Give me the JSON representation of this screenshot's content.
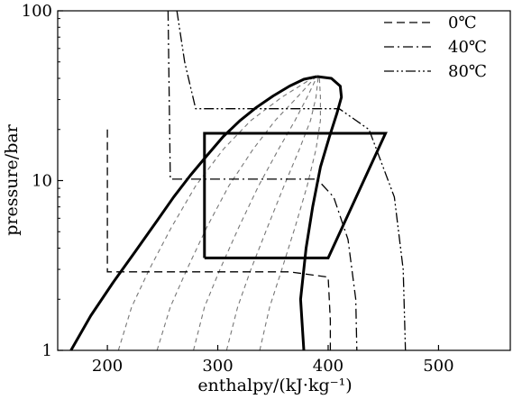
{
  "chart_data": {
    "type": "line",
    "title": "",
    "xlabel": "enthalpy/(kJ·kg⁻¹)",
    "ylabel": "pressure/bar",
    "xlim": [
      155,
      565
    ],
    "ylim": [
      1,
      100
    ],
    "yscale": "log",
    "grid": false,
    "legend_position": "top-right",
    "x_ticks": [
      {
        "value": 200,
        "label": "200"
      },
      {
        "value": 300,
        "label": "300"
      },
      {
        "value": 400,
        "label": "400"
      },
      {
        "value": 500,
        "label": "500"
      }
    ],
    "y_ticks": [
      {
        "value": 1,
        "label": "1"
      },
      {
        "value": 10,
        "label": "10"
      },
      {
        "value": 100,
        "label": "100"
      }
    ],
    "saturation_dome": {
      "liquid": [
        [
          167,
          1
        ],
        [
          185,
          1.6
        ],
        [
          205,
          2.5
        ],
        [
          225,
          3.8
        ],
        [
          245,
          5.8
        ],
        [
          260,
          8
        ],
        [
          275,
          10.7
        ],
        [
          290,
          14
        ],
        [
          305,
          18.2
        ],
        [
          320,
          22.5
        ],
        [
          335,
          27
        ],
        [
          350,
          31.5
        ],
        [
          365,
          36
        ],
        [
          378,
          39.5
        ],
        [
          390,
          41
        ]
      ],
      "vapor": [
        [
          390,
          41
        ],
        [
          403,
          40
        ],
        [
          411,
          36
        ],
        [
          412,
          31
        ],
        [
          408,
          25
        ],
        [
          401,
          18
        ],
        [
          393,
          12
        ],
        [
          386,
          7
        ],
        [
          380,
          4
        ],
        [
          375,
          2
        ],
        [
          378,
          1
        ]
      ]
    },
    "cycle": [
      [
        288,
        3.5
      ],
      [
        288,
        19
      ],
      [
        452,
        19
      ],
      [
        400,
        3.5
      ],
      [
        288,
        3.5
      ]
    ],
    "quality_lines": [
      [
        [
          210,
          1
        ],
        [
          222,
          1.8
        ],
        [
          238,
          3
        ],
        [
          258,
          5.3
        ],
        [
          280,
          9.3
        ],
        [
          305,
          15.3
        ],
        [
          330,
          22.6
        ],
        [
          358,
          31
        ],
        [
          388,
          41
        ]
      ],
      [
        [
          245,
          1
        ],
        [
          257,
          1.8
        ],
        [
          272,
          3
        ],
        [
          290,
          5.3
        ],
        [
          310,
          9.3
        ],
        [
          332,
          15.3
        ],
        [
          352,
          22.6
        ],
        [
          372,
          31
        ],
        [
          389,
          41
        ]
      ],
      [
        [
          278,
          1
        ],
        [
          288,
          1.8
        ],
        [
          302,
          3
        ],
        [
          319,
          5.3
        ],
        [
          337,
          9.3
        ],
        [
          355,
          15.3
        ],
        [
          370,
          22.6
        ],
        [
          381,
          31
        ],
        [
          390,
          41
        ]
      ],
      [
        [
          308,
          1
        ],
        [
          318,
          1.8
        ],
        [
          330,
          3
        ],
        [
          345,
          5.3
        ],
        [
          360,
          9.3
        ],
        [
          374,
          15.3
        ],
        [
          384,
          22.6
        ],
        [
          389,
          31
        ],
        [
          391,
          41
        ]
      ],
      [
        [
          338,
          1
        ],
        [
          347,
          1.8
        ],
        [
          358,
          3
        ],
        [
          370,
          5.3
        ],
        [
          381,
          9.3
        ],
        [
          389,
          15.3
        ],
        [
          393,
          22.6
        ],
        [
          393,
          31
        ],
        [
          392,
          41
        ]
      ]
    ],
    "series": [
      {
        "name": "0℃",
        "style": "dashed",
        "points": [
          [
            200,
            20
          ],
          [
            200,
            2.9
          ],
          [
            365,
            2.9
          ],
          [
            400,
            2.7
          ],
          [
            402,
            1.5
          ],
          [
            402,
            1
          ]
        ]
      },
      {
        "name": "40℃",
        "style": "dashdot",
        "points": [
          [
            255,
            100
          ],
          [
            257,
            10.2
          ],
          [
            390,
            10.2
          ],
          [
            405,
            8
          ],
          [
            418,
            4.5
          ],
          [
            425,
            2
          ],
          [
            426,
            1
          ]
        ]
      },
      {
        "name": "80℃",
        "style": "dashdotdot",
        "points": [
          [
            263,
            100
          ],
          [
            270,
            50
          ],
          [
            280,
            26.5
          ],
          [
            410,
            26.5
          ],
          [
            437,
            20
          ],
          [
            460,
            8
          ],
          [
            468,
            3
          ],
          [
            470,
            1
          ]
        ]
      }
    ]
  }
}
